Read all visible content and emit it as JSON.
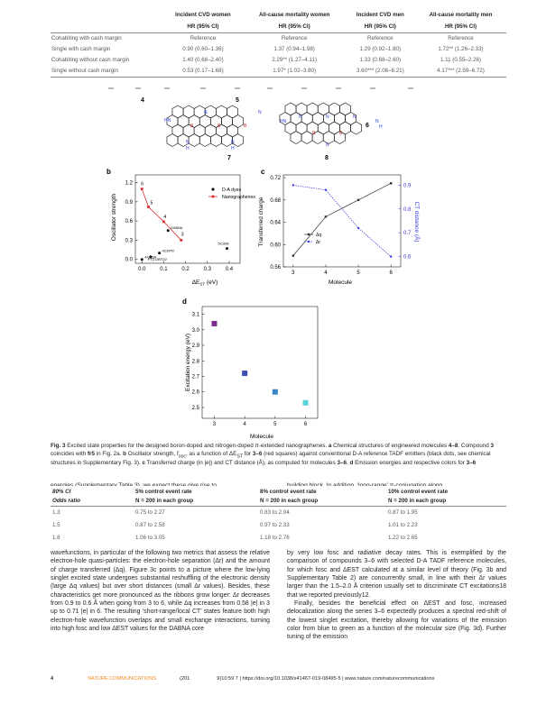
{
  "table1": {
    "headers": [
      [
        "",
        "Incident CVD women",
        "All-cause mortality women",
        "Incident CVD men",
        "All-cause mortality men"
      ],
      [
        "",
        "HR (95% CI)",
        "HR (95% CI)",
        "HR (95% CI)",
        "HR (95% CI)"
      ]
    ],
    "rows": [
      [
        "Cohabiting with cash margin",
        "Reference",
        "Reference",
        "Reference",
        "Reference"
      ],
      [
        "Single with cash margin",
        "0.90 (0.60–1.36)",
        "1.37 (0.94–1.98)",
        "1.29 (0.92–1.80)",
        "1.72** (1.26–2.33)"
      ],
      [
        "Cohabiting without cash margin",
        "1.40 (0.68–2.40)",
        "2.29** (1.27–4.11)",
        "1.33 (0.68–2.60)",
        "1.11 (0.55–2.26)"
      ],
      [
        "Single without cash margin",
        "0.53 (0.17–1.68)",
        "1.97* (1.02–3.80)",
        "3.60*** (2.08–6.21)",
        "4.17*** (2.59–6.72)"
      ]
    ]
  },
  "figure": {
    "structures": {
      "labels": [
        "4",
        "5",
        "6",
        "7",
        "8"
      ],
      "atoms": {
        "boron": "B",
        "nitrogen": "N",
        "hydrogen": "H",
        "nh": "HN"
      }
    },
    "panel_b": {
      "label": "b",
      "xlabel": "ΔE",
      "xlabel_sub": "ST",
      "xlabel_unit": " (eV)",
      "ylabel": "Oscillator strength",
      "xticks": [
        "0.0",
        "0.1",
        "0.2",
        "0.3",
        "0.4"
      ],
      "yticks": [
        "0.0",
        "0.3",
        "0.6",
        "0.9",
        "1.2"
      ],
      "legend": [
        "D-A dyes",
        "Nanographenes"
      ],
      "dye_labels": [
        "4CzIPN",
        "ACRSA",
        "PTZ-DBTO2",
        "5CzBN",
        "DABNA"
      ],
      "nano_labels": [
        "6",
        "5",
        "4",
        "3"
      ]
    },
    "panel_c": {
      "label": "c",
      "xlabel": "Molecule",
      "ylabel_left": "Transferred charge",
      "ylabel_right": "CT distance (Å)",
      "xticks": [
        "3",
        "4",
        "5",
        "6"
      ],
      "yticks_left": [
        "0.56",
        "0.60",
        "0.64",
        "0.68",
        "0.72"
      ],
      "yticks_right": [
        "0.6",
        "0.7",
        "0.8",
        "0.9"
      ],
      "legend": [
        "Δq",
        "Δr"
      ]
    },
    "panel_d": {
      "label": "d",
      "xlabel": "Molecule",
      "ylabel": "Excitation energy (eV)",
      "xticks": [
        "3",
        "4",
        "5",
        "6"
      ],
      "yticks": [
        "2.4",
        "2.5",
        "2.6",
        "2.7",
        "2.8",
        "2.9",
        "3.0",
        "3.1"
      ]
    }
  },
  "chart_data": [
    {
      "type": "scatter",
      "xlim": [
        -0.03,
        0.45
      ],
      "ylim": [
        -0.06,
        1.32
      ],
      "series": [
        {
          "name": "D-A dyes",
          "points": [
            [
              0.08,
              0.1
            ],
            [
              0.0,
              0.0
            ],
            [
              0.04,
              0.04
            ],
            [
              0.39,
              0.17
            ],
            [
              0.12,
              0.45
            ]
          ]
        },
        {
          "name": "Nanographenes",
          "points": [
            [
              0.0,
              1.1
            ],
            [
              0.03,
              0.82
            ],
            [
              0.1,
              0.59
            ],
            [
              0.18,
              0.3
            ]
          ]
        }
      ]
    },
    {
      "type": "line",
      "x": [
        3,
        4,
        5,
        6
      ],
      "xlim": [
        2.7,
        6.3
      ],
      "ylim": [
        0.56,
        0.725
      ],
      "y2lim": [
        0.557,
        0.943
      ],
      "series": [
        {
          "name": "Δq",
          "axis": "left",
          "values": [
            0.58,
            0.65,
            0.68,
            0.71
          ]
        },
        {
          "name": "Δr",
          "axis": "right",
          "values": [
            0.9,
            0.88,
            0.72,
            0.6
          ]
        }
      ]
    },
    {
      "type": "scatter",
      "x": [
        3,
        4,
        5,
        6
      ],
      "xlim": [
        2.6,
        6.4
      ],
      "ylim": [
        2.43,
        3.15
      ],
      "values": [
        3.04,
        2.72,
        2.6,
        2.53
      ],
      "colors": [
        "#7b2d8e",
        "#3c4fb5",
        "#3a86c6",
        "#5ad0d8"
      ]
    }
  ],
  "caption": {
    "lead": "Fig. 3",
    "title": " Excited state properties for the designed boron-doped and nitrogen-doped π-extended nanographenes. ",
    "a_label": "a",
    "a_text": " Chemical structures of engineered molecules ",
    "a_bold1": "4–8",
    "a_text2": ". Compound ",
    "a_bold2": "3",
    "a_text3": " coincides with ",
    "a_bold3": "fr5",
    "a_text4": " in Fig. 2a. ",
    "b_label": "b",
    "b_text": " Oscillator strength, f",
    "b_sub1": "osc",
    "b_text2": ", as a function of ΔE",
    "b_sub2": "ST",
    "b_text3": " for ",
    "b_bold": "3–6",
    "b_text4": " (red squares) against conventional D-A reference TADF emitters (black dots, see chemical structures in Supplementary Fig. 3). ",
    "c_label": "c",
    "c_text": " Transferred charge (in |e|) and CT distance (Å), as computed for molecules ",
    "c_bold": "3–6",
    "c_text2": ". ",
    "d_label": "d",
    "d_text": " Emission energies and respective colors for ",
    "d_bold": "3–6"
  },
  "clipped_line": {
    "left": "energies (Supplementary Table 3), we expect these give rise to",
    "right": "building block. In addition, ‘long-range’ π-conjugation along"
  },
  "table2": {
    "headers": [
      [
        "80% CI",
        "5% control event rate",
        "8% control event rate",
        "10% control event rate"
      ],
      [
        "Odds ratio",
        "N = 200 in each group",
        "N = 200 in each group",
        "N = 200 in each group"
      ]
    ],
    "rows": [
      [
        "1.3",
        "0.75 to 2.27",
        "0.83 to 2.04",
        "0.87 to 1.95"
      ],
      [
        "1.5",
        "0.87 to 2.58",
        "0.97 to 2.33",
        "1.01 to 2.23"
      ],
      [
        "1.8",
        "1.06 to 3.05",
        "1.18 to 2.76",
        "1.22 to 2.65"
      ]
    ]
  },
  "body_left": "wavefunctions, in particular of the following two metrics that assess the relative electron-hole quasi-particles: the electron-hole separation (Δr) and the amount of charge transferred (Δq). Figure 3c points to a picture where the low-lying singlet excited state undergoes substantial reshuffling of the electronic density (large Δq values) but over short distances (small Δr values). Besides, these characteristics get more pronounced as the ribbons grow longer: Δr decreases from 0.9 to 0.6 Å when going from 3 to 6, while Δq increases from 0.58 |e| in 3 up to 0.71 |e| in 6. The resulting ‘short-range/local CT’ states feature both high electron-hole wavefunction overlaps and small exchange interactions, turning into high fosc and low ΔEST values for the DABNA core",
  "body_right_1": "by very low fosc and radiative decay rates. This is exemplified by the comparison of compounds 3–6 with selected D-A TADF reference molecules, for which fosc and ΔEST calculated at a similar level of theory (Fig. 3b and Supplementary Table 2) are concurrently small, in line with their Δr values larger than the 1.5–2.0 Å criterion usually set to discriminate CT excitations18 that we reported previously12.",
  "body_right_2": "Finally, besides the beneficial effect on ΔEST and fosc, increased delocalization along the series 3–6 expectedly produces a spectral red-shift of the lowest singlet excitation, thereby allowing for variations of the emission color from blue to green as a function of the molecular size (Fig. 3d). Further tuning of the emission",
  "footer": {
    "page": "4",
    "journal": "NATURE COMMUNICATIONS",
    "year": "(201",
    "doi": "9)10:59   7  | https://doi.org/10.1038/s41467-019-08495-5 | www.nature.com/naturecommunications"
  },
  "colors": {
    "accent": "#f08a24",
    "nano_red": "#d8302e",
    "dq_line": "#333333",
    "dr_line": "#3a3ae0",
    "hetero_b": "#d8302e",
    "hetero_n": "#2a3fd1"
  }
}
